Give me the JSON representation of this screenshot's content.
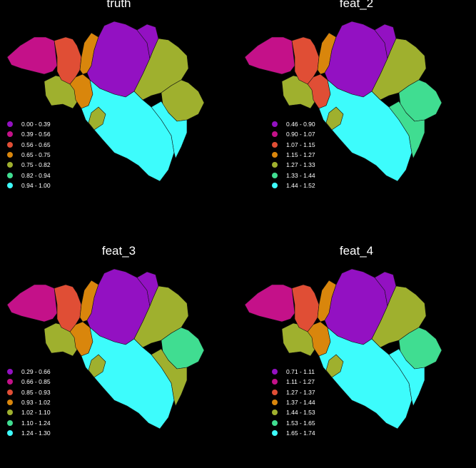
{
  "palette": [
    "#9311c2",
    "#c41189",
    "#e04e35",
    "#d9860c",
    "#9fb02e",
    "#40dd91",
    "#3dfcfc"
  ],
  "maps": [
    {
      "title": "truth",
      "legend": [
        "0.00 - 0.39",
        "0.39 - 0.56",
        "0.56 - 0.65",
        "0.65 - 0.75",
        "0.75 - 0.82",
        "0.82 - 0.94",
        "0.94 - 1.00"
      ],
      "region_classes": {
        "wfl": 1,
        "hai_w": 4,
        "ofl": 2,
        "hai_c": 3,
        "ant": 3,
        "vbr": 0,
        "lim": 0,
        "nam": 6,
        "lie": 4,
        "lie_e": 4,
        "lux": 6,
        "wbr": 4
      }
    },
    {
      "title": "feat_2",
      "legend": [
        "0.46 - 0.90",
        "0.90 - 1.07",
        "1.07 - 1.15",
        "1.15 - 1.27",
        "1.27 - 1.33",
        "1.33 - 1.44",
        "1.44 - 1.52"
      ],
      "region_classes": {
        "wfl": 1,
        "hai_w": 4,
        "ofl": 2,
        "hai_c": 2,
        "ant": 3,
        "vbr": 0,
        "lim": 0,
        "nam": 6,
        "lie": 4,
        "lie_e": 5,
        "lux": 5,
        "wbr": 4
      }
    },
    {
      "title": "feat_3",
      "legend": [
        "0.29 - 0.66",
        "0.66 - 0.85",
        "0.85 - 0.93",
        "0.93 - 1.02",
        "1.02 - 1.10",
        "1.10 - 1.24",
        "1.24 - 1.30"
      ],
      "region_classes": {
        "wfl": 1,
        "hai_w": 4,
        "ofl": 2,
        "hai_c": 3,
        "ant": 3,
        "vbr": 0,
        "lim": 0,
        "nam": 6,
        "lie": 4,
        "lie_e": 5,
        "lux": 4,
        "wbr": 4
      }
    },
    {
      "title": "feat_4",
      "legend": [
        "0.71 - 1.11",
        "1.11 - 1.27",
        "1.27 - 1.37",
        "1.37 - 1.44",
        "1.44 - 1.53",
        "1.53 - 1.65",
        "1.65 - 1.74"
      ],
      "region_classes": {
        "wfl": 1,
        "hai_w": 4,
        "ofl": 2,
        "hai_c": 3,
        "ant": 3,
        "vbr": 0,
        "lim": 0,
        "nam": 6,
        "lie": 4,
        "lie_e": 5,
        "lux": 6,
        "wbr": 4
      }
    }
  ]
}
